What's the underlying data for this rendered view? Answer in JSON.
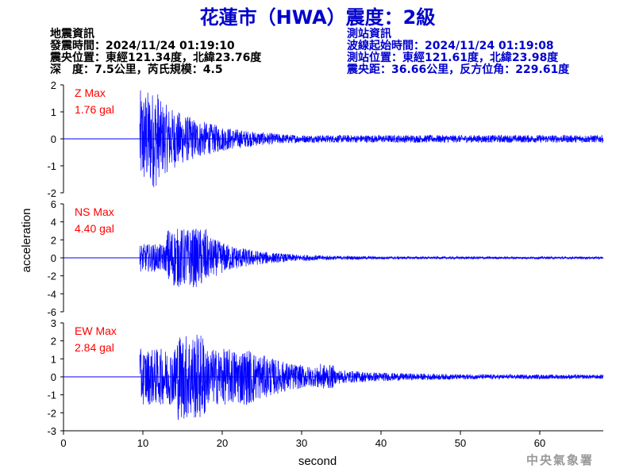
{
  "header": {
    "title": "花蓮市（HWA）震度：2級"
  },
  "quake_info": {
    "heading": "地震資訊",
    "time": "發震時間：2024/11/24 01:19:10",
    "location": "震央位置：東經121.34度，北緯23.76度",
    "depth_mag": "深　度：7.5公里，芮氏規模：4.5"
  },
  "station_info": {
    "heading": "測站資訊",
    "onset": "波線起始時間：2024/11/24 01:19:08",
    "location": "測站位置：東經121.61度，北緯23.98度",
    "distance": "震央距：36.66公里，反方位角：229.61度"
  },
  "agency": "中央氣象署",
  "colors": {
    "trace": "#0000ff",
    "label": "#ff0000",
    "title": "#0000cc"
  },
  "chart_data": {
    "type": "line",
    "xlabel": "second",
    "ylabel": "acceleration",
    "xlim": [
      0,
      68
    ],
    "xticks": [
      0,
      10,
      20,
      30,
      40,
      50,
      60
    ],
    "panels": [
      {
        "name": "Z Max",
        "max_text": "1.76 gal",
        "ylim": [
          -2,
          2
        ],
        "yticks": [
          -2,
          -1,
          0,
          1,
          2
        ],
        "peak": 1.76
      },
      {
        "name": "NS Max",
        "max_text": "4.40 gal",
        "ylim": [
          -6,
          6
        ],
        "yticks": [
          -6,
          -4,
          -2,
          0,
          2,
          4,
          6
        ],
        "peak": 4.4
      },
      {
        "name": "EW Max",
        "max_text": "2.84 gal",
        "ylim": [
          -3,
          3
        ],
        "yticks": [
          -3,
          -2,
          -1,
          0,
          1,
          2,
          3
        ],
        "peak": 2.84
      }
    ]
  }
}
